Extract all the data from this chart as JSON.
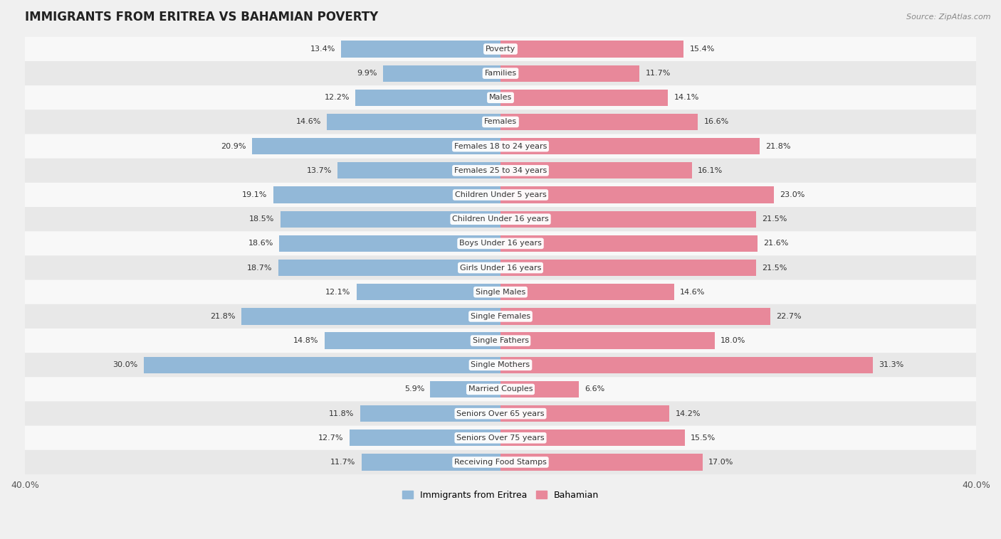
{
  "title": "IMMIGRANTS FROM ERITREA VS BAHAMIAN POVERTY",
  "source": "Source: ZipAtlas.com",
  "categories": [
    "Poverty",
    "Families",
    "Males",
    "Females",
    "Females 18 to 24 years",
    "Females 25 to 34 years",
    "Children Under 5 years",
    "Children Under 16 years",
    "Boys Under 16 years",
    "Girls Under 16 years",
    "Single Males",
    "Single Females",
    "Single Fathers",
    "Single Mothers",
    "Married Couples",
    "Seniors Over 65 years",
    "Seniors Over 75 years",
    "Receiving Food Stamps"
  ],
  "eritrea_values": [
    13.4,
    9.9,
    12.2,
    14.6,
    20.9,
    13.7,
    19.1,
    18.5,
    18.6,
    18.7,
    12.1,
    21.8,
    14.8,
    30.0,
    5.9,
    11.8,
    12.7,
    11.7
  ],
  "bahamian_values": [
    15.4,
    11.7,
    14.1,
    16.6,
    21.8,
    16.1,
    23.0,
    21.5,
    21.6,
    21.5,
    14.6,
    22.7,
    18.0,
    31.3,
    6.6,
    14.2,
    15.5,
    17.0
  ],
  "eritrea_color": "#92b8d8",
  "bahamian_color": "#e8889a",
  "eritrea_label": "Immigrants from Eritrea",
  "bahamian_label": "Bahamian",
  "xlim": 40.0,
  "background_color": "#f0f0f0",
  "row_color1": "#f8f8f8",
  "row_color2": "#e8e8e8",
  "bar_height": 0.68,
  "title_fontsize": 12,
  "label_fontsize": 8,
  "value_fontsize": 8,
  "legend_fontsize": 9
}
